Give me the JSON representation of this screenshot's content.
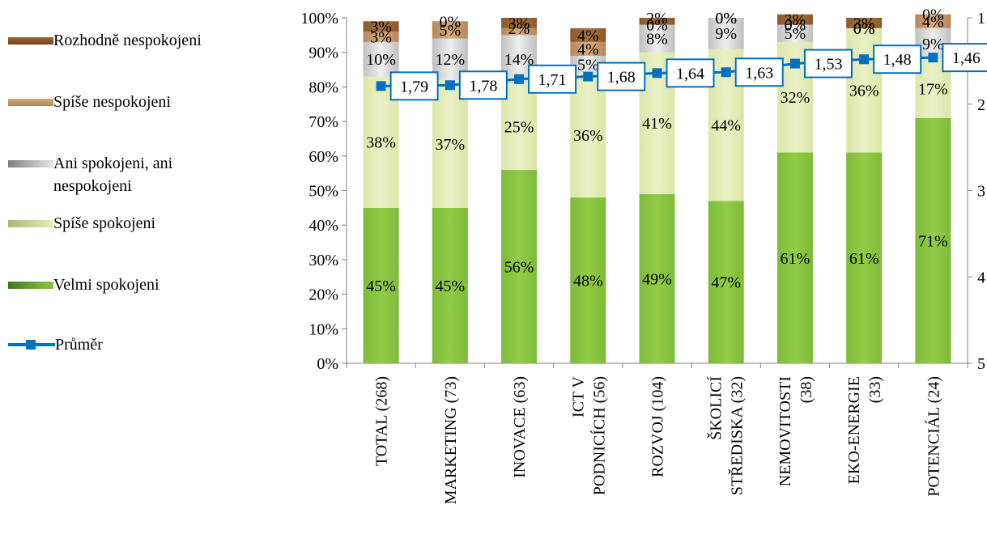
{
  "chart_data": {
    "type": "bar",
    "stacked": true,
    "categories": [
      "TOTAL (268)",
      "MARKETING (73)",
      "INOVACE (63)",
      "ICT V PODNICÍCH (56)",
      "ROZVOJ (104)",
      "ŠKOLICÍ STŘEDISKA (32)",
      "NEMOVITOSTI (38)",
      "EKO-ENERGIE (33)",
      "POTENCIÁL (24)"
    ],
    "category_lines": [
      [
        "TOTAL (268)"
      ],
      [
        "MARKETING (73)"
      ],
      [
        "INOVACE (63)"
      ],
      [
        "ICT V",
        "PODNICÍCH (56)"
      ],
      [
        "ROZVOJ (104)"
      ],
      [
        "ŠKOLICÍ",
        "STŘEDISKA (32)"
      ],
      [
        "NEMOVITOSTI",
        "(38)"
      ],
      [
        "EKO-ENERGIE",
        "(33)"
      ],
      [
        "POTENCIÁL (24)"
      ]
    ],
    "series": [
      {
        "name": "Velmi spokojeni",
        "color": "#8CC63E",
        "values": [
          45,
          45,
          56,
          48,
          49,
          47,
          61,
          61,
          71
        ],
        "labels": [
          "45%",
          "45%",
          "56%",
          "48%",
          "49%",
          "47%",
          "61%",
          "61%",
          "71%"
        ]
      },
      {
        "name": "Spíše spokojeni",
        "color": "#E2EBB4",
        "values": [
          38,
          37,
          25,
          36,
          41,
          44,
          32,
          36,
          17
        ],
        "labels": [
          "38%",
          "37%",
          "25%",
          "36%",
          "41%",
          "44%",
          "32%",
          "36%",
          "17%"
        ]
      },
      {
        "name": "Ani spokojeni, ani nespokojeni",
        "color": "#D9D9D9",
        "values": [
          10,
          12,
          14,
          5,
          8,
          9,
          5,
          0,
          9
        ],
        "labels": [
          "10%",
          "12%",
          "14%",
          "5%",
          "8%",
          "9%",
          "5%",
          "0%",
          "9%"
        ]
      },
      {
        "name": "Spíše nespokojeni",
        "color": "#C69C6D",
        "values": [
          3,
          5,
          2,
          4,
          0,
          0,
          0,
          0,
          4
        ],
        "labels": [
          "3%",
          "5%",
          "2%",
          "4%",
          "0%",
          "0%",
          "0%",
          "0%",
          "4%"
        ]
      },
      {
        "name": "Rozhodně nespokojeni",
        "color": "#8B5A2B",
        "values": [
          3,
          0,
          3,
          4,
          2,
          0,
          3,
          3,
          0
        ],
        "labels": [
          "3%",
          "0%",
          "3%",
          "4%",
          "2%",
          "0%",
          "3%",
          "3%",
          "0%"
        ]
      }
    ],
    "line_series": {
      "name": "Průměr",
      "color": "#0070C0",
      "values": [
        1.79,
        1.78,
        1.71,
        1.68,
        1.64,
        1.63,
        1.53,
        1.48,
        1.46
      ],
      "labels": [
        "1,79",
        "1,78",
        "1,71",
        "1,68",
        "1,64",
        "1,63",
        "1,53",
        "1,48",
        "1,46"
      ]
    },
    "y_left": {
      "min": 0,
      "max": 100,
      "ticks": [
        "0%",
        "10%",
        "20%",
        "30%",
        "40%",
        "50%",
        "60%",
        "70%",
        "80%",
        "90%",
        "100%"
      ]
    },
    "y_right": {
      "min": 1,
      "max": 5,
      "inverted": true,
      "ticks": [
        "1",
        "2",
        "3",
        "4",
        "5"
      ]
    },
    "legend": {
      "items": [
        {
          "key": "rozhodne",
          "label": "Rozhodně nespokojeni",
          "color": "#8B5A2B"
        },
        {
          "key": "spise_nesp",
          "label": "Spíše nespokojeni",
          "color": "#C69C6D"
        },
        {
          "key": "ani",
          "label": "Ani spokojeni, ani nespokojeni",
          "color": "#BFBFBF"
        },
        {
          "key": "spise_spok",
          "label": "Spíše spokojeni",
          "color": "#D8E4A6"
        },
        {
          "key": "velmi",
          "label": "Velmi spokojeni",
          "color": "#6FA83A"
        },
        {
          "key": "prumer",
          "label": "Průměr",
          "color": "#0070C0"
        }
      ],
      "placement": "left"
    },
    "grid": false
  }
}
